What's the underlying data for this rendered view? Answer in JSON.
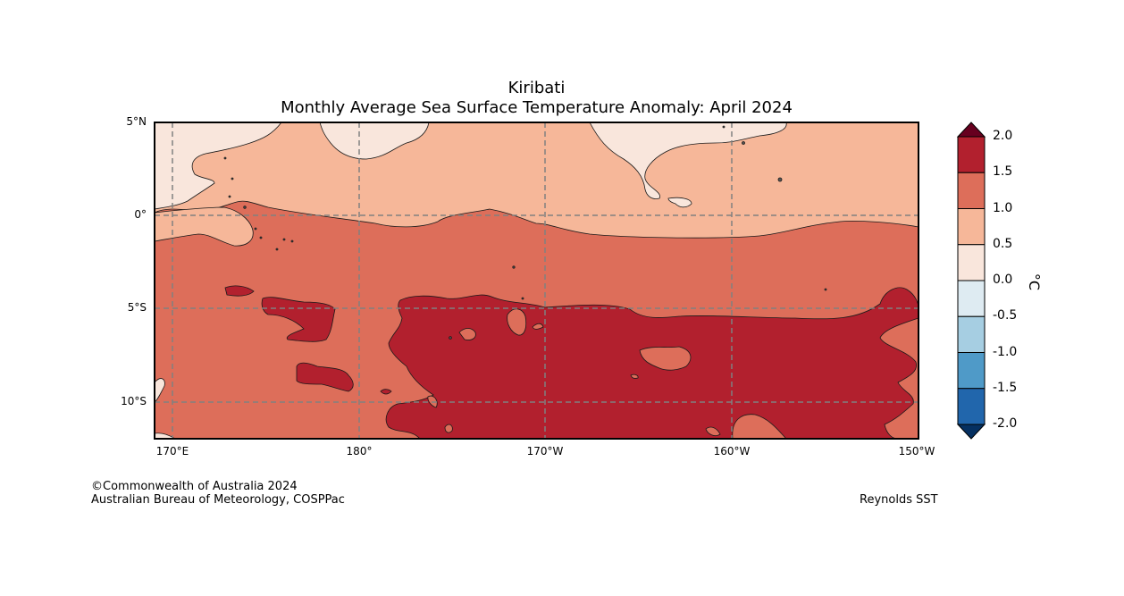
{
  "title": {
    "line1": "Kiribati",
    "line2": "Monthly Average Sea Surface Temperature Anomaly: April 2024"
  },
  "axes": {
    "lat_labels": [
      "5°N",
      "0°",
      "5°S",
      "10°S"
    ],
    "lon_labels": [
      "170°E",
      "180°",
      "170°W",
      "160°W",
      "150°W"
    ],
    "gridlines": "dashed"
  },
  "colorbar": {
    "unit": "°C",
    "tick_labels": [
      "2.0",
      "1.5",
      "1.0",
      "0.5",
      "0.0",
      "-0.5",
      "-1.0",
      "-1.5",
      "-2.0"
    ],
    "bins": [
      {
        "range": "above 2.0",
        "color": "#67001f"
      },
      {
        "range": "1.5 to 2.0",
        "color": "#b2202e"
      },
      {
        "range": "1.0 to 1.5",
        "color": "#dd6e5a"
      },
      {
        "range": "0.5 to 1.0",
        "color": "#f6b799"
      },
      {
        "range": "0.0 to 0.5",
        "color": "#f9e6dc"
      },
      {
        "range": "-0.5 to 0.0",
        "color": "#deebf2"
      },
      {
        "range": "-1.0 to -0.5",
        "color": "#a6cee2"
      },
      {
        "range": "-1.5 to -1.0",
        "color": "#4f9ac8"
      },
      {
        "range": "-2.0 to -1.5",
        "color": "#2166ac"
      },
      {
        "range": "below -2.0",
        "color": "#053061"
      }
    ]
  },
  "footer": {
    "copyright": "©Commonwealth of Australia 2024",
    "agency": "Australian Bureau of Meteorology, COSPPac",
    "source": "Reynolds SST"
  }
}
